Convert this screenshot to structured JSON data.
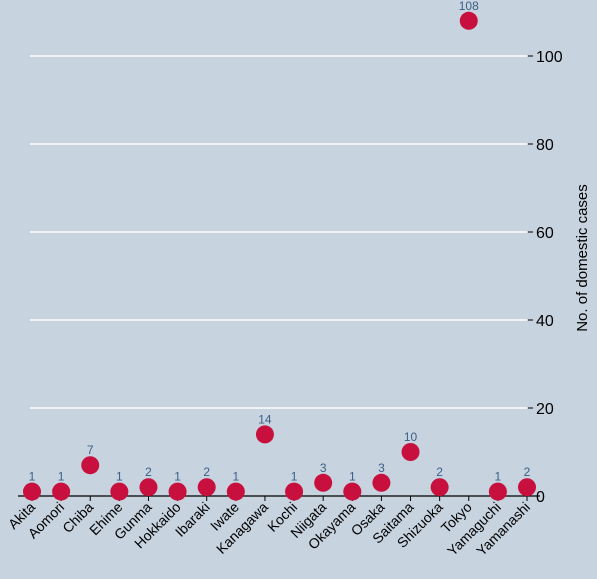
{
  "chart_data": {
    "type": "scatter",
    "title": "",
    "xlabel": "",
    "ylabel": "No. of domestic cases",
    "ylim": [
      0,
      110
    ],
    "yticks": [
      0,
      20,
      40,
      60,
      80,
      100
    ],
    "grid": true,
    "y_axis_position": "right",
    "categories": [
      "Akita",
      "Aomori",
      "Chiba",
      "Ehime",
      "Gunma",
      "Hokkaido",
      "Ibaraki",
      "Iwate",
      "Kanagawa",
      "Kochi",
      "Niigata",
      "Okayama",
      "Osaka",
      "Saitama",
      "Shizuoka",
      "Tokyo",
      "Yamaguchi",
      "Yamanashi"
    ],
    "values": [
      1,
      1,
      7,
      1,
      2,
      1,
      2,
      1,
      14,
      1,
      3,
      1,
      3,
      10,
      2,
      108,
      1,
      2
    ],
    "data_labels": [
      "1",
      "1",
      "7",
      "1",
      "2",
      "1",
      "2",
      "1",
      "14",
      "1",
      "3",
      "1",
      "3",
      "10",
      "2",
      "108",
      "1",
      "2"
    ],
    "colors": {
      "background": "#c7d3df",
      "marker": "#c8103e",
      "data_label": "#3a5f86",
      "grid": "#ffffff",
      "axis": "#000000",
      "text": "#000000"
    }
  }
}
